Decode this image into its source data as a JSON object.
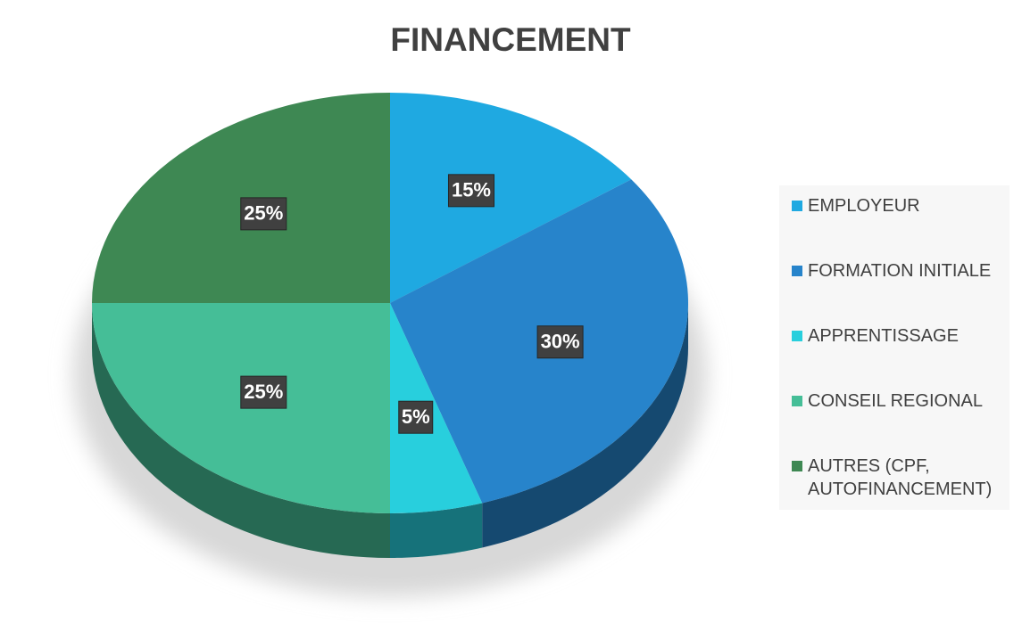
{
  "chart_data": {
    "type": "pie",
    "title": "FINANCEMENT",
    "categories": [
      "EMPLOYEUR",
      "FORMATION INITIALE",
      "APPRENTISSAGE",
      "CONSEIL REGIONAL",
      "AUTRES (CPF, AUTOFINANCEMENT)"
    ],
    "values": [
      15,
      30,
      5,
      25,
      25
    ],
    "value_labels": [
      "15%",
      "30%",
      "5%",
      "25%",
      "25%"
    ],
    "colors": [
      "#1fa9e1",
      "#2784cb",
      "#28cfdd",
      "#45be97",
      "#3e8853"
    ],
    "legend": "right"
  }
}
